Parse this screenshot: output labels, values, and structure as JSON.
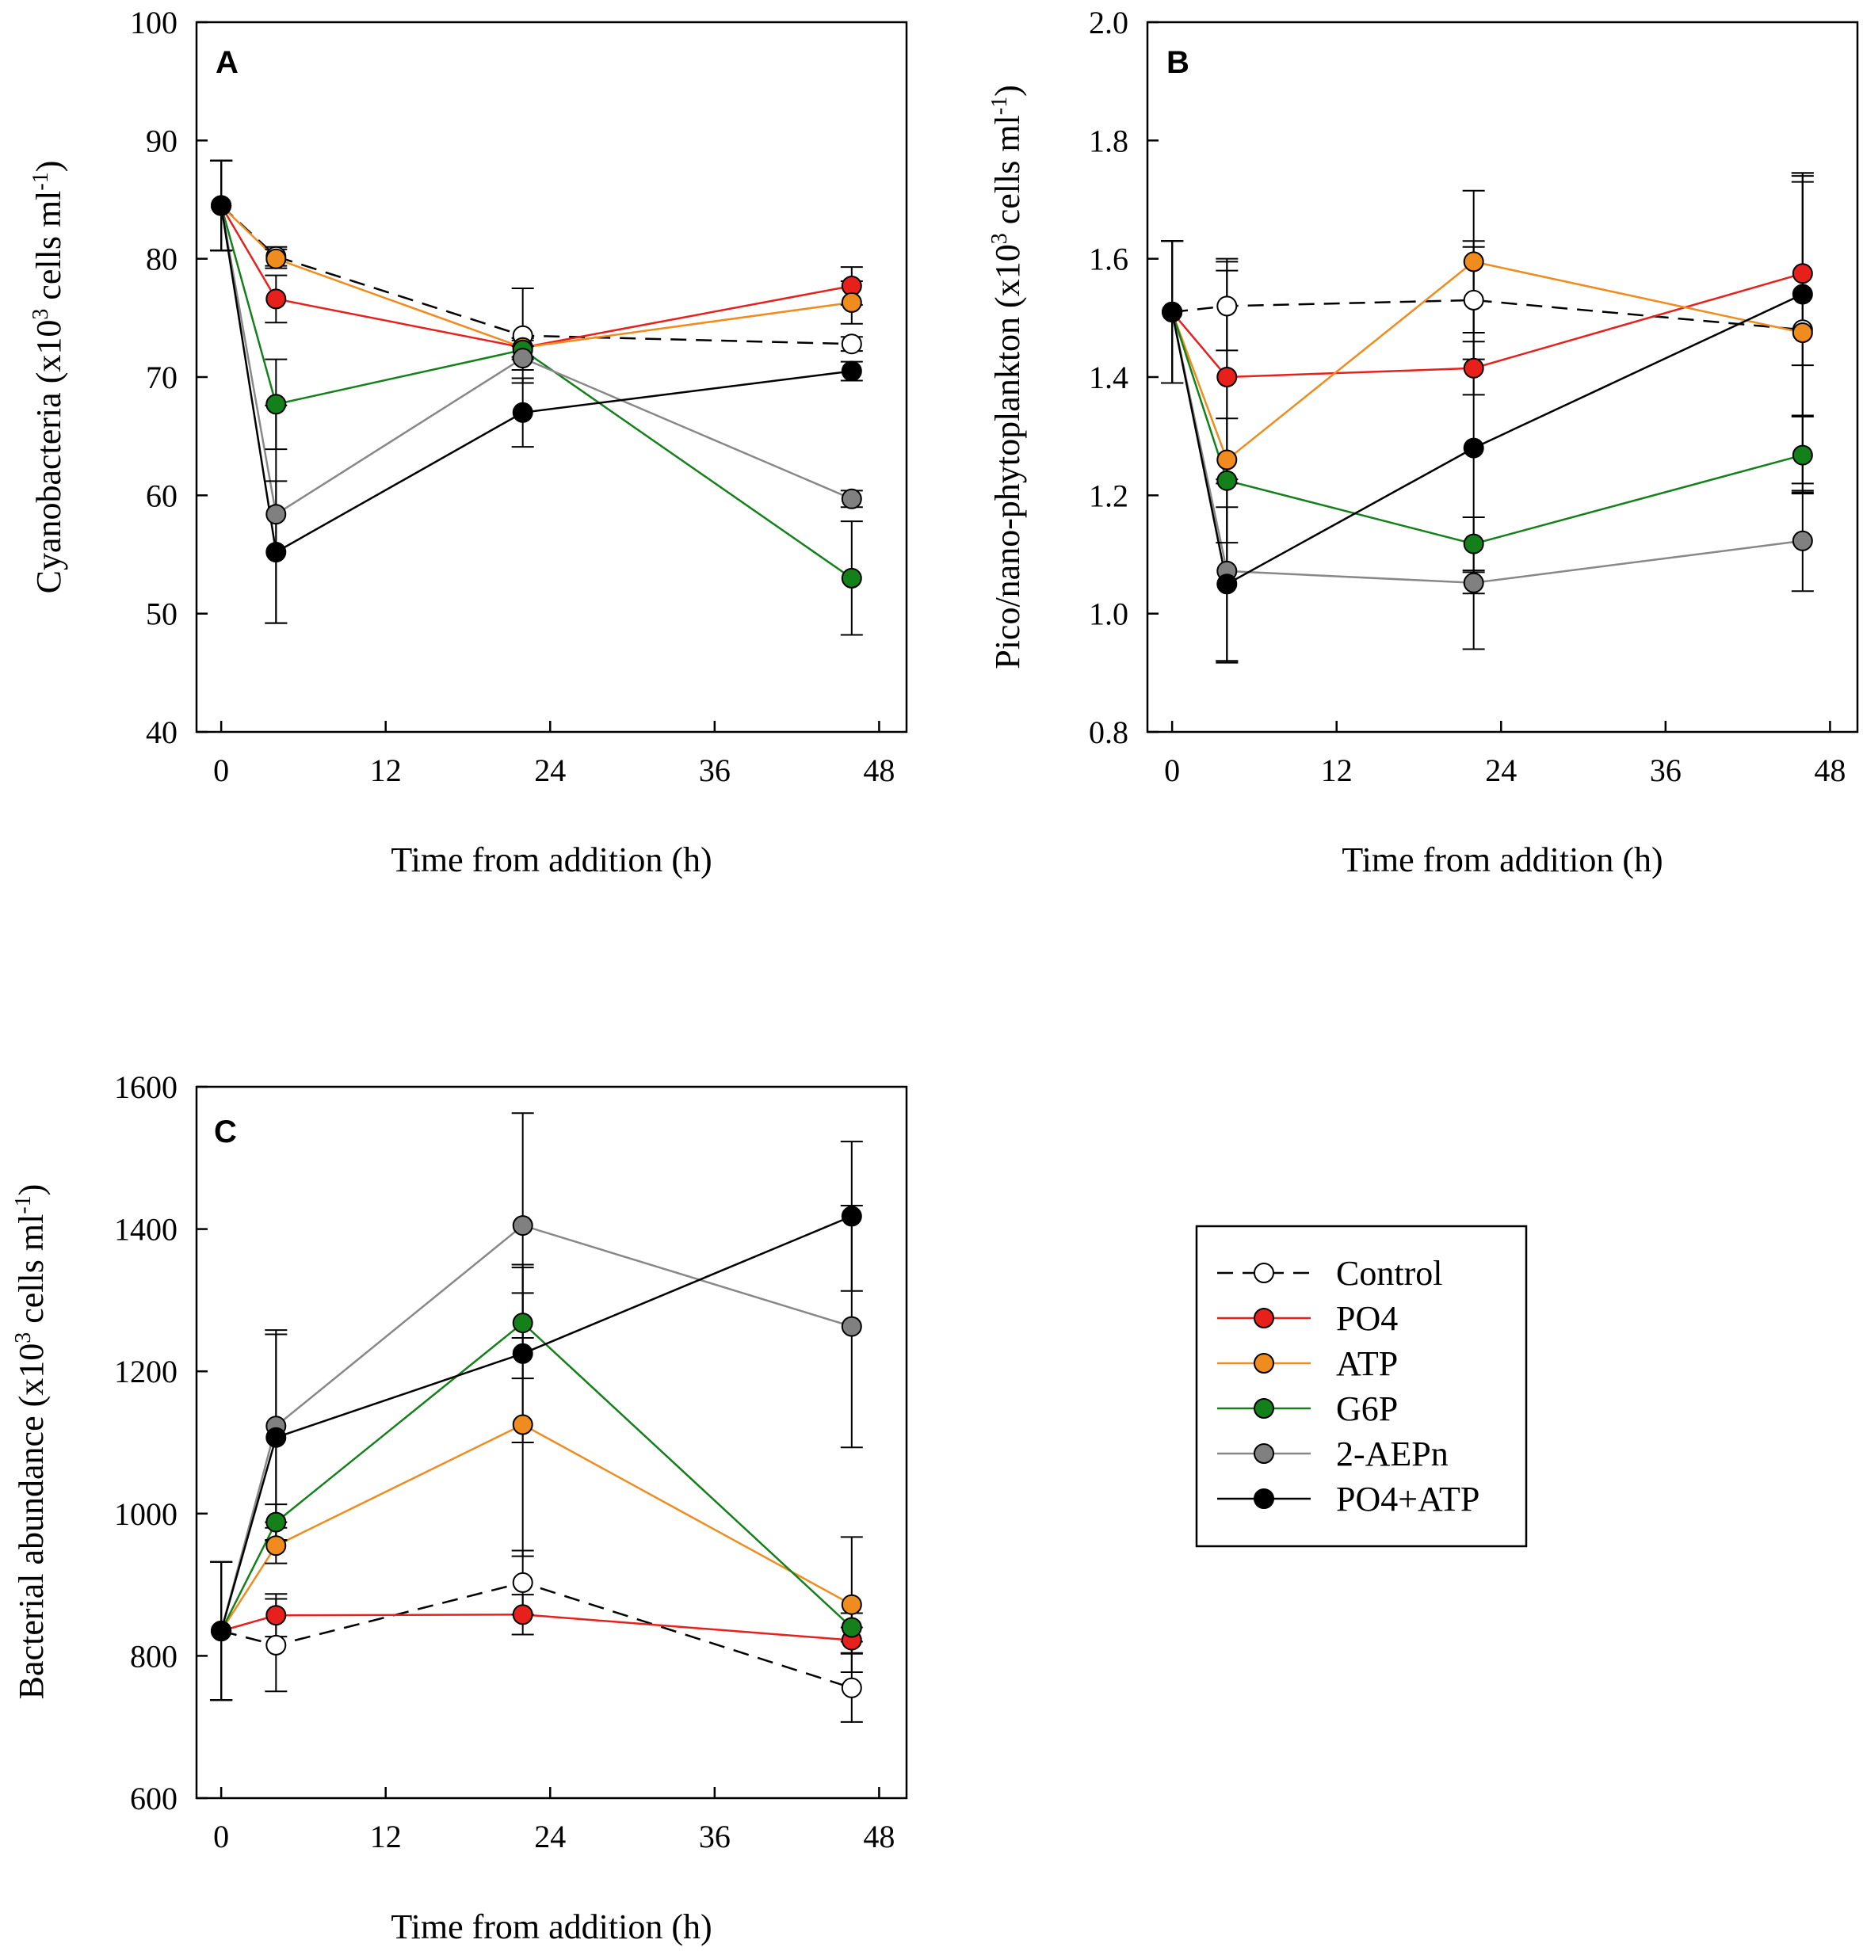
{
  "figure": {
    "legend": {
      "entries": [
        {
          "label": "Control",
          "line": "#000000",
          "fill": "#ffffff",
          "dashed": true
        },
        {
          "label": "PO4",
          "line": "#e8201c",
          "fill": "#e8201c",
          "dashed": false
        },
        {
          "label": "ATP",
          "line": "#f08c1e",
          "fill": "#f08c1e",
          "dashed": false
        },
        {
          "label": "G6P",
          "line": "#13801a",
          "fill": "#13801a",
          "dashed": false
        },
        {
          "label": "2-AEPn",
          "line": "#888888",
          "fill": "#808080",
          "dashed": false
        },
        {
          "label": "PO4+ATP",
          "line": "#000000",
          "fill": "#000000",
          "dashed": false
        }
      ]
    }
  },
  "chart_data": [
    {
      "type": "line",
      "panel": "A",
      "xlabel": "Time from addition (h)",
      "ylabel_main": "Cyanobacteria (x10",
      "ylabel_sup": "3",
      "ylabel_mid": " cells ml",
      "ylabel_sup2": "-1",
      "ylabel_end": ")",
      "xlim": [
        -1.8,
        50
      ],
      "ylim": [
        40,
        100
      ],
      "xticks": [
        0,
        12,
        24,
        36,
        48
      ],
      "yticks": [
        40,
        50,
        60,
        70,
        80,
        90,
        100
      ],
      "yfmt": 0,
      "series": [
        {
          "name": "Control",
          "x": [
            0,
            4,
            22,
            46
          ],
          "y": [
            84.5,
            80.2,
            73.5,
            72.8
          ],
          "err": [
            3.8,
            0.8,
            4.0,
            0.6
          ]
        },
        {
          "name": "PO4",
          "x": [
            0,
            4,
            22,
            46
          ],
          "y": [
            84.5,
            76.6,
            72.5,
            77.7
          ],
          "err": [
            3.8,
            2.0,
            0.8,
            1.6
          ]
        },
        {
          "name": "ATP",
          "x": [
            0,
            4,
            22,
            46
          ],
          "y": [
            84.5,
            80.0,
            72.5,
            76.3
          ],
          "err": [
            3.8,
            0.8,
            0.8,
            1.8
          ]
        },
        {
          "name": "G6P",
          "x": [
            0,
            4,
            22,
            46
          ],
          "y": [
            84.5,
            67.7,
            72.3,
            53.0
          ],
          "err": [
            3.8,
            3.8,
            0.8,
            4.8
          ]
        },
        {
          "name": "2-AEPn",
          "x": [
            0,
            4,
            22,
            46
          ],
          "y": [
            84.5,
            58.4,
            71.6,
            59.7
          ],
          "err": [
            3.8,
            9.2,
            1.0,
            0.7
          ]
        },
        {
          "name": "PO4+ATP",
          "x": [
            0,
            4,
            22,
            46
          ],
          "y": [
            84.5,
            55.2,
            67.0,
            70.5
          ],
          "err": [
            3.8,
            6.0,
            2.9,
            0.8
          ]
        }
      ]
    },
    {
      "type": "line",
      "panel": "B",
      "xlabel": "Time from addition (h)",
      "ylabel_main": "Pico/nano-phytoplankton (x10",
      "ylabel_sup": "3",
      "ylabel_mid": " cells ml",
      "ylabel_sup2": "-1",
      "ylabel_end": ")",
      "xlim": [
        -1.8,
        50
      ],
      "ylim": [
        0.8,
        2.0
      ],
      "xticks": [
        0,
        12,
        24,
        36,
        48
      ],
      "yticks": [
        0.8,
        1.0,
        1.2,
        1.4,
        1.6,
        1.8,
        2.0
      ],
      "yfmt": 1,
      "series": [
        {
          "name": "Control",
          "x": [
            0,
            4,
            22,
            46
          ],
          "y": [
            1.51,
            1.52,
            1.53,
            1.48
          ],
          "err": [
            0.12,
            0.075,
            0.1,
            0.26
          ]
        },
        {
          "name": "PO4",
          "x": [
            0,
            4,
            22,
            46
          ],
          "y": [
            1.51,
            1.4,
            1.415,
            1.575
          ],
          "err": [
            0.12,
            0.18,
            0.045,
            0.155
          ]
        },
        {
          "name": "ATP",
          "x": [
            0,
            4,
            22,
            46
          ],
          "y": [
            1.51,
            1.26,
            1.595,
            1.475
          ],
          "err": [
            0.12,
            0.34,
            0.12,
            0.27
          ]
        },
        {
          "name": "G6P",
          "x": [
            0,
            4,
            22,
            46
          ],
          "y": [
            1.51,
            1.225,
            1.118,
            1.268
          ],
          "err": [
            0.12,
            0.105,
            0.045,
            0.065
          ]
        },
        {
          "name": "2-AEPn",
          "x": [
            0,
            4,
            22,
            46
          ],
          "y": [
            1.51,
            1.072,
            1.052,
            1.123
          ],
          "err": [
            0.12,
            0.155,
            0.018,
            0.085
          ]
        },
        {
          "name": "PO4+ATP",
          "x": [
            0,
            4,
            22,
            46
          ],
          "y": [
            1.51,
            1.05,
            1.28,
            1.54
          ],
          "err": [
            0.12,
            0.13,
            0.34,
            0.205
          ]
        }
      ]
    },
    {
      "type": "line",
      "panel": "C",
      "xlabel": "Time from addition (h)",
      "ylabel_main": "Bacterial abundance (x10",
      "ylabel_sup": "3",
      "ylabel_mid": " cells ml",
      "ylabel_sup2": "-1",
      "ylabel_end": ")",
      "xlim": [
        -1.8,
        50
      ],
      "ylim": [
        600,
        1600
      ],
      "xticks": [
        0,
        12,
        24,
        36,
        48
      ],
      "yticks": [
        600,
        800,
        1000,
        1200,
        1400,
        1600
      ],
      "yfmt": 0,
      "series": [
        {
          "name": "Control",
          "x": [
            0,
            4,
            22,
            46
          ],
          "y": [
            835,
            815,
            903,
            755
          ],
          "err": [
            97,
            65,
            45,
            48
          ]
        },
        {
          "name": "PO4",
          "x": [
            0,
            4,
            22,
            46
          ],
          "y": [
            835,
            857,
            858,
            822
          ],
          "err": [
            97,
            30,
            28,
            18
          ]
        },
        {
          "name": "ATP",
          "x": [
            0,
            4,
            22,
            46
          ],
          "y": [
            835,
            955,
            1125,
            872
          ],
          "err": [
            97,
            25,
            185,
            95
          ]
        },
        {
          "name": "G6P",
          "x": [
            0,
            4,
            22,
            46
          ],
          "y": [
            835,
            988,
            1268,
            840
          ],
          "err": [
            97,
            25,
            78,
            20
          ]
        },
        {
          "name": "2-AEPn",
          "x": [
            0,
            4,
            22,
            46
          ],
          "y": [
            835,
            1123,
            1405,
            1263
          ],
          "err": [
            97,
            135,
            158,
            170
          ]
        },
        {
          "name": "PO4+ATP",
          "x": [
            0,
            4,
            22,
            46
          ],
          "y": [
            835,
            1107,
            1225,
            1418
          ],
          "err": [
            97,
            145,
            125,
            105
          ]
        }
      ]
    }
  ]
}
